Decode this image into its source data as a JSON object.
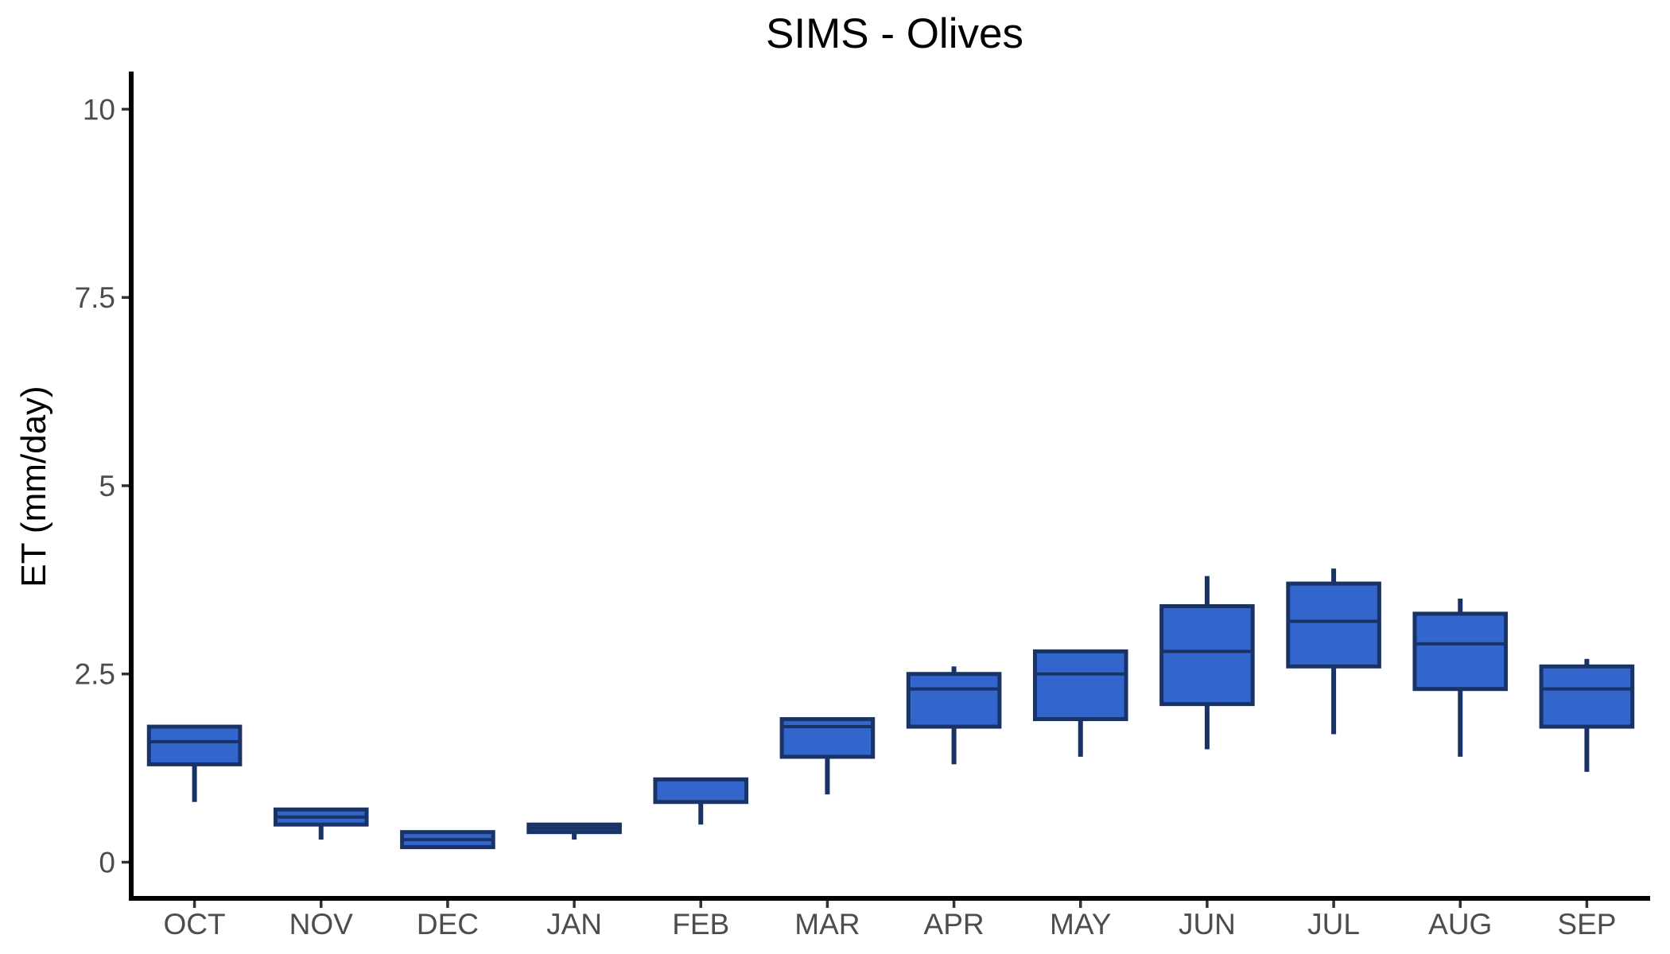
{
  "chart_data": {
    "type": "boxplot",
    "title": "SIMS - Olives",
    "xlabel": "",
    "ylabel": "ET (mm/day)",
    "ylim": [
      -0.48,
      10.5
    ],
    "yticks": [
      0,
      2.5,
      5,
      7.5,
      10
    ],
    "ytick_labels": [
      "0",
      "2.5",
      "5",
      "7.5",
      "10"
    ],
    "grid": false,
    "legend": "none",
    "colors": {
      "box_fill": "#3366cc",
      "box_stroke": "#1a3366"
    },
    "categories": [
      "OCT",
      "NOV",
      "DEC",
      "JAN",
      "FEB",
      "MAR",
      "APR",
      "MAY",
      "JUN",
      "JUL",
      "AUG",
      "SEP"
    ],
    "boxes": [
      {
        "label": "OCT",
        "min": 0.8,
        "q1": 1.3,
        "median": 1.6,
        "q3": 1.8,
        "max": 1.8
      },
      {
        "label": "NOV",
        "min": 0.3,
        "q1": 0.5,
        "median": 0.6,
        "q3": 0.7,
        "max": 0.7
      },
      {
        "label": "DEC",
        "min": 0.2,
        "q1": 0.2,
        "median": 0.3,
        "q3": 0.4,
        "max": 0.4
      },
      {
        "label": "JAN",
        "min": 0.3,
        "q1": 0.4,
        "median": 0.45,
        "q3": 0.5,
        "max": 0.5
      },
      {
        "label": "FEB",
        "min": 0.5,
        "q1": 0.8,
        "median": 1.1,
        "q3": 1.1,
        "max": 1.1
      },
      {
        "label": "MAR",
        "min": 0.9,
        "q1": 1.4,
        "median": 1.8,
        "q3": 1.9,
        "max": 1.9
      },
      {
        "label": "APR",
        "min": 1.3,
        "q1": 1.8,
        "median": 2.3,
        "q3": 2.5,
        "max": 2.6
      },
      {
        "label": "MAY",
        "min": 1.4,
        "q1": 1.9,
        "median": 2.5,
        "q3": 2.8,
        "max": 2.8
      },
      {
        "label": "JUN",
        "min": 1.5,
        "q1": 2.1,
        "median": 2.8,
        "q3": 3.4,
        "max": 3.8
      },
      {
        "label": "JUL",
        "min": 1.7,
        "q1": 2.6,
        "median": 3.2,
        "q3": 3.7,
        "max": 3.9
      },
      {
        "label": "AUG",
        "min": 1.4,
        "q1": 2.3,
        "median": 2.9,
        "q3": 3.3,
        "max": 3.5
      },
      {
        "label": "SEP",
        "min": 1.2,
        "q1": 1.8,
        "median": 2.3,
        "q3": 2.6,
        "max": 2.7
      }
    ]
  }
}
